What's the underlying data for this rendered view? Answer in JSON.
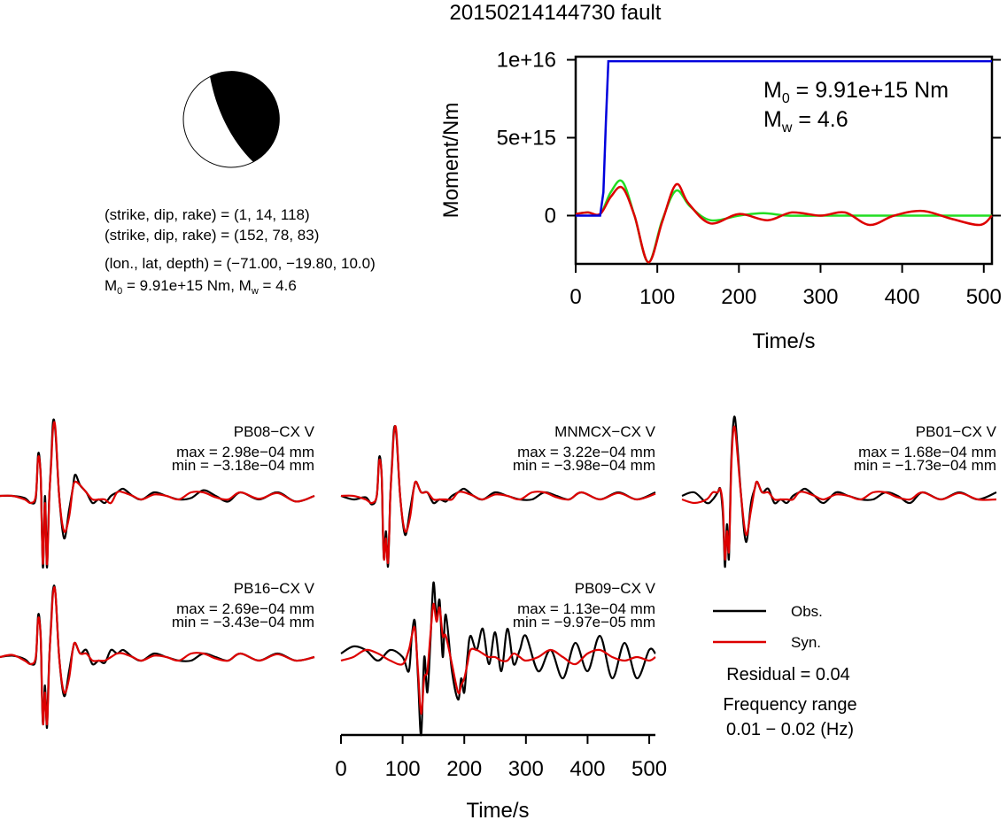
{
  "title": "20150214144730 fault",
  "source_info": {
    "lines": [
      "(strike, dip, rake) = (1, 14, 118)",
      "(strike, dip, rake) = (152, 78, 83)",
      "(lon., lat, depth) = (−71.00, −19.80, 10.0)"
    ],
    "m0_prefix": "M",
    "m0_sub": "0",
    "m0_rest": " = 9.91e+15 Nm, M",
    "mw_sub": "w",
    "mw_rest": " = 4.6"
  },
  "moment_plot": {
    "ylabel": "Moment/Nm",
    "xlabel": "Time/s",
    "ytick_labels": [
      "1e+16",
      "5e+15",
      "0"
    ],
    "yticks": [
      1e+16,
      5000000000000000.0,
      0
    ],
    "xticks": [
      0,
      100,
      200,
      300,
      400,
      500
    ],
    "xtick_labels": [
      "0",
      "100",
      "200",
      "300",
      "400",
      "500"
    ],
    "m0_label": "M",
    "m0_sub": "0",
    "m0_value": " = 9.91e+15 Nm",
    "mw_label": "M",
    "mw_sub": "w",
    "mw_value": " = 4.6",
    "colors": {
      "cumulative": "#0000dd",
      "rate_a": "#dd0000",
      "rate_b": "#22dd22"
    }
  },
  "chart_data": [
    {
      "type": "line",
      "title": "",
      "xlabel": "Time/s",
      "ylabel": "Moment/Nm",
      "xlim": [
        0,
        510
      ],
      "ylim": [
        -3100000000000000.0,
        1.02e+16
      ],
      "series": [
        {
          "x": [
            0,
            30,
            34,
            37,
            40,
            510
          ],
          "values": [
            0,
            0,
            1500000000000000.0,
            6000000000000000.0,
            9910000000000000.0,
            9910000000000000.0
          ]
        },
        {
          "x": [
            0,
            15,
            30,
            43,
            57,
            72,
            89,
            106,
            123,
            138,
            165,
            200,
            235,
            265,
            300,
            330,
            360,
            390,
            425,
            460,
            495,
            510
          ],
          "values": [
            100000000000000.0,
            200000000000000.0,
            100000000000000.0,
            1200000000000000.0,
            1800000000000000.0,
            0,
            -3000000000000000.0,
            -400000000000000.0,
            2000000000000000.0,
            800000000000000.0,
            -500000000000000.0,
            100000000000000.0,
            -300000000000000.0,
            200000000000000.0,
            0,
            200000000000000.0,
            -600000000000000.0,
            0,
            300000000000000.0,
            -200000000000000.0,
            -600000000000000.0,
            0
          ]
        },
        {
          "x": [
            0,
            15,
            30,
            43,
            57,
            72,
            89,
            106,
            123,
            140,
            165,
            200,
            230,
            260,
            300,
            360,
            420,
            510
          ],
          "values": [
            100000000000000.0,
            200000000000000.0,
            100000000000000.0,
            1500000000000000.0,
            2200000000000000.0,
            0,
            -3000000000000000.0,
            -300000000000000.0,
            1600000000000000.0,
            600000000000000.0,
            -300000000000000.0,
            0,
            150000000000000.0,
            0,
            0,
            0,
            0,
            0
          ]
        }
      ]
    },
    {
      "type": "line",
      "xlabel": "Time/s",
      "xlim": [
        0,
        510
      ],
      "xticks": [
        0,
        100,
        200,
        300,
        400,
        500
      ],
      "traces": [
        {
          "station": "PB08−CX V",
          "max": "max = 2.98e−04 mm",
          "min": "min = −3.18e−04 mm",
          "t": [
            0,
            20,
            40,
            50,
            58,
            62,
            66,
            68,
            70,
            73,
            76,
            78,
            80,
            83,
            86,
            90,
            96,
            104,
            112,
            118,
            122,
            130,
            140,
            150,
            160,
            170,
            180,
            190,
            200,
            215,
            230,
            250,
            270,
            290,
            310,
            330,
            350,
            370,
            390,
            420,
            450,
            480,
            510
          ],
          "obs": [
            0,
            0,
            -0.03,
            -0.1,
            -0.03,
            0.6,
            0.3,
            -0.5,
            -1,
            0,
            -1,
            -0.5,
            0,
            0.5,
            1.05,
            0.9,
            0,
            -0.6,
            -0.2,
            0.1,
            0.3,
            0.15,
            0.05,
            -0.1,
            -0.05,
            -0.1,
            0,
            0.05,
            0.1,
            0,
            -0.05,
            0.05,
            0,
            -0.05,
            -0.03,
            0.08,
            0,
            -0.08,
            0.05,
            -0.05,
            0.05,
            -0.08,
            0
          ],
          "syn": [
            0,
            0,
            -0.05,
            -0.1,
            0,
            0.55,
            0.3,
            -0.5,
            -0.95,
            -0.1,
            -0.95,
            -0.6,
            0,
            0.45,
            0.95,
            0.95,
            0,
            -0.5,
            -0.3,
            0.1,
            0.2,
            0.15,
            0.05,
            -0.05,
            -0.05,
            -0.05,
            -0.1,
            0.05,
            0.05,
            0,
            -0.05,
            0.02,
            0,
            -0.05,
            0.05,
            0.05,
            -0.02,
            -0.05,
            0.05,
            -0.04,
            0.04,
            -0.08,
            0
          ]
        },
        {
          "station": "MNMCX−CX V",
          "max": "max = 3.22e−04 mm",
          "min": "min = −3.98e−04 mm",
          "t": [
            0,
            20,
            40,
            50,
            58,
            62,
            66,
            68,
            70,
            73,
            76,
            78,
            80,
            83,
            86,
            90,
            96,
            104,
            112,
            118,
            122,
            130,
            140,
            150,
            160,
            170,
            180,
            190,
            200,
            215,
            230,
            250,
            270,
            290,
            310,
            330,
            350,
            370,
            390,
            420,
            450,
            480,
            510
          ],
          "obs": [
            0,
            -0.05,
            -0.02,
            -0.12,
            0,
            0.55,
            0.3,
            -0.5,
            -0.9,
            -0.5,
            -1,
            -0.6,
            0,
            0.5,
            0.95,
            0.85,
            0,
            -0.55,
            -0.2,
            0.1,
            0.2,
            0.05,
            0.05,
            -0.1,
            -0.05,
            -0.08,
            0,
            0.05,
            0.1,
            0,
            -0.05,
            0.05,
            0,
            -0.05,
            -0.05,
            0.05,
            0,
            -0.05,
            0.05,
            -0.05,
            0.05,
            -0.05,
            0.05
          ],
          "syn": [
            0,
            0,
            -0.05,
            -0.1,
            0,
            0.5,
            0.3,
            -0.45,
            -0.9,
            -0.6,
            -0.95,
            -0.6,
            0,
            0.45,
            0.9,
            0.9,
            0,
            -0.5,
            -0.3,
            0.1,
            0.2,
            0.05,
            0.05,
            -0.05,
            -0.05,
            -0.05,
            -0.05,
            0.05,
            0.05,
            0,
            -0.05,
            0.02,
            0,
            -0.05,
            0.05,
            0.05,
            -0.02,
            -0.05,
            0.05,
            -0.05,
            0.04,
            -0.05,
            0.03
          ]
        },
        {
          "station": "PB01−CX V",
          "max": "max = 1.68e−04 mm",
          "min": "min = −1.73e−04 mm",
          "t": [
            0,
            20,
            40,
            50,
            58,
            62,
            66,
            68,
            70,
            73,
            76,
            78,
            80,
            83,
            86,
            90,
            96,
            104,
            112,
            118,
            122,
            130,
            140,
            150,
            160,
            170,
            180,
            190,
            200,
            215,
            230,
            250,
            270,
            290,
            310,
            330,
            350,
            370,
            390,
            420,
            450,
            480,
            510
          ],
          "obs": [
            0,
            0.05,
            -0.1,
            -0.05,
            0.05,
            0.1,
            -0.2,
            -0.6,
            -1,
            -0.4,
            -0.9,
            -0.2,
            0.5,
            1,
            1.1,
            0.7,
            0,
            -0.65,
            -0.1,
            0.1,
            0.2,
            0.05,
            0.1,
            -0.1,
            -0.05,
            -0.1,
            0,
            0.05,
            0.1,
            0,
            -0.1,
            0.05,
            0,
            -0.05,
            -0.05,
            0.05,
            0,
            -0.1,
            0.05,
            -0.05,
            0.05,
            -0.05,
            0.05
          ],
          "syn": [
            -0.05,
            -0.1,
            -0.05,
            0.05,
            0.05,
            0.1,
            -0.1,
            -0.5,
            -0.9,
            -0.5,
            -0.8,
            -0.3,
            0.4,
            0.9,
            0.95,
            0.6,
            0,
            -0.55,
            -0.2,
            0.1,
            0.2,
            0.05,
            0.05,
            -0.05,
            -0.05,
            -0.05,
            -0.05,
            0.05,
            0.05,
            0,
            -0.05,
            0.02,
            0,
            -0.05,
            0.05,
            0.05,
            -0.02,
            -0.05,
            0.05,
            -0.05,
            0.04,
            -0.05,
            -0.05
          ]
        },
        {
          "station": "PB16−CX V",
          "max": "max = 2.69e−04 mm",
          "min": "min = −3.43e−04 mm",
          "t": [
            0,
            20,
            40,
            50,
            58,
            62,
            66,
            68,
            70,
            73,
            76,
            78,
            80,
            83,
            86,
            90,
            96,
            104,
            112,
            118,
            122,
            130,
            140,
            150,
            160,
            170,
            180,
            190,
            200,
            215,
            230,
            250,
            270,
            290,
            310,
            330,
            350,
            370,
            390,
            420,
            450,
            480,
            510
          ],
          "obs": [
            0,
            0.02,
            -0.03,
            -0.1,
            -0.03,
            0.6,
            0.3,
            -0.5,
            -0.95,
            -0.4,
            -1,
            -0.5,
            0,
            0.5,
            0.95,
            0.9,
            0,
            -0.55,
            -0.2,
            0.1,
            0.2,
            0.05,
            0.1,
            -0.1,
            -0.05,
            -0.08,
            0.1,
            0.05,
            0.1,
            0,
            -0.05,
            0.05,
            0,
            -0.05,
            -0.05,
            0.05,
            0,
            -0.05,
            0.05,
            -0.05,
            0.05,
            -0.05,
            0
          ],
          "syn": [
            0,
            0.03,
            -0.05,
            -0.1,
            0,
            0.55,
            0.3,
            -0.45,
            -0.95,
            -0.5,
            -0.95,
            -0.6,
            0,
            0.45,
            0.9,
            0.9,
            0,
            -0.5,
            -0.3,
            0.1,
            0.2,
            0.05,
            0.05,
            -0.05,
            -0.05,
            -0.05,
            0,
            0.05,
            0.05,
            0,
            -0.05,
            0.02,
            0,
            -0.05,
            0.05,
            0.05,
            -0.02,
            -0.05,
            0.05,
            -0.05,
            0.04,
            -0.05,
            0
          ]
        },
        {
          "station": "PB09−CX V",
          "max": "max = 1.13e−04 mm",
          "min": "min = −9.97e−05 mm",
          "t": [
            0,
            20,
            40,
            60,
            80,
            100,
            110,
            115,
            120,
            125,
            130,
            135,
            140,
            145,
            150,
            155,
            160,
            165,
            170,
            180,
            190,
            195,
            200,
            205,
            210,
            220,
            230,
            240,
            250,
            260,
            270,
            280,
            290,
            300,
            320,
            340,
            360,
            380,
            400,
            420,
            440,
            460,
            480,
            500,
            510
          ],
          "obs": [
            0.05,
            0.15,
            0.1,
            -0.05,
            0.1,
            0,
            -0.2,
            0.3,
            0.5,
            -0.3,
            -1.1,
            0,
            -0.5,
            0.2,
            1.05,
            0.55,
            0.8,
            0,
            0.6,
            -0.2,
            -0.6,
            -0.3,
            -0.5,
            0,
            0.3,
            0.1,
            0.4,
            -0.1,
            0.35,
            -0.2,
            0.4,
            -0.1,
            0.1,
            0.3,
            -0.2,
            0.1,
            -0.3,
            0.2,
            -0.2,
            0.3,
            -0.3,
            0.2,
            -0.3,
            0.1,
            0.05
          ],
          "syn": [
            -0.05,
            0,
            0.1,
            0.05,
            -0.05,
            -0.1,
            0.1,
            0.3,
            0.4,
            -0.2,
            -0.8,
            -0.3,
            -0.2,
            0.3,
            0.75,
            0.5,
            0.7,
            0.3,
            0.3,
            -0.1,
            -0.5,
            -0.4,
            -0.3,
            -0.1,
            0.1,
            0.1,
            0.05,
            0,
            0,
            -0.05,
            -0.05,
            0.05,
            0,
            -0.05,
            0,
            0.1,
            0,
            -0.1,
            0.05,
            0.1,
            0,
            -0.05,
            0,
            -0.05,
            0
          ]
        }
      ]
    }
  ],
  "legend": {
    "obs": "Obs.",
    "syn": "Syn.",
    "obs_color": "#000000",
    "syn_color": "#dd0000"
  },
  "residual": "Residual = 0.04",
  "freq_label": "Frequency range",
  "freq_value": "0.01 − 0.02 (Hz)"
}
